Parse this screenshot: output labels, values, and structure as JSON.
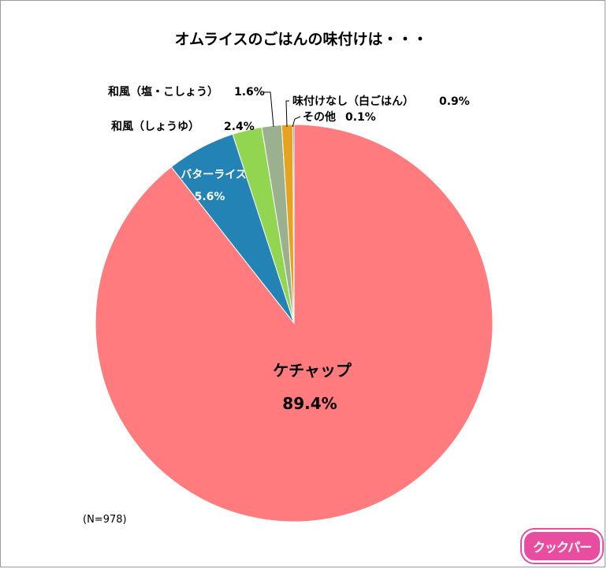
{
  "chart_data": {
    "type": "pie",
    "title": "オムライスのごはんの味付けは・・・",
    "note": "(N=978)",
    "start_angle_deg": 0,
    "direction": "clockwise",
    "slices": [
      {
        "label": "ケチャップ",
        "value": 89.4,
        "value_text": "89.4%",
        "color": "#ff7b7d"
      },
      {
        "label": "バターライス",
        "value": 5.6,
        "value_text": "5.6%",
        "color": "#2383b5"
      },
      {
        "label": "和風（しょうゆ）",
        "value": 2.4,
        "value_text": "2.4%",
        "color": "#92d550"
      },
      {
        "label": "和風（塩・こしょう）",
        "value": 1.6,
        "value_text": "1.6%",
        "color": "#9bb08e"
      },
      {
        "label": "味付けなし（白ごはん）",
        "value": 0.9,
        "value_text": "0.9%",
        "color": "#e7a320"
      },
      {
        "label": "その他",
        "value": 0.1,
        "value_text": "0.1%",
        "color": "#2f5fa8"
      }
    ]
  },
  "logo": {
    "text": "クックパー",
    "color": "#e84d9f"
  }
}
